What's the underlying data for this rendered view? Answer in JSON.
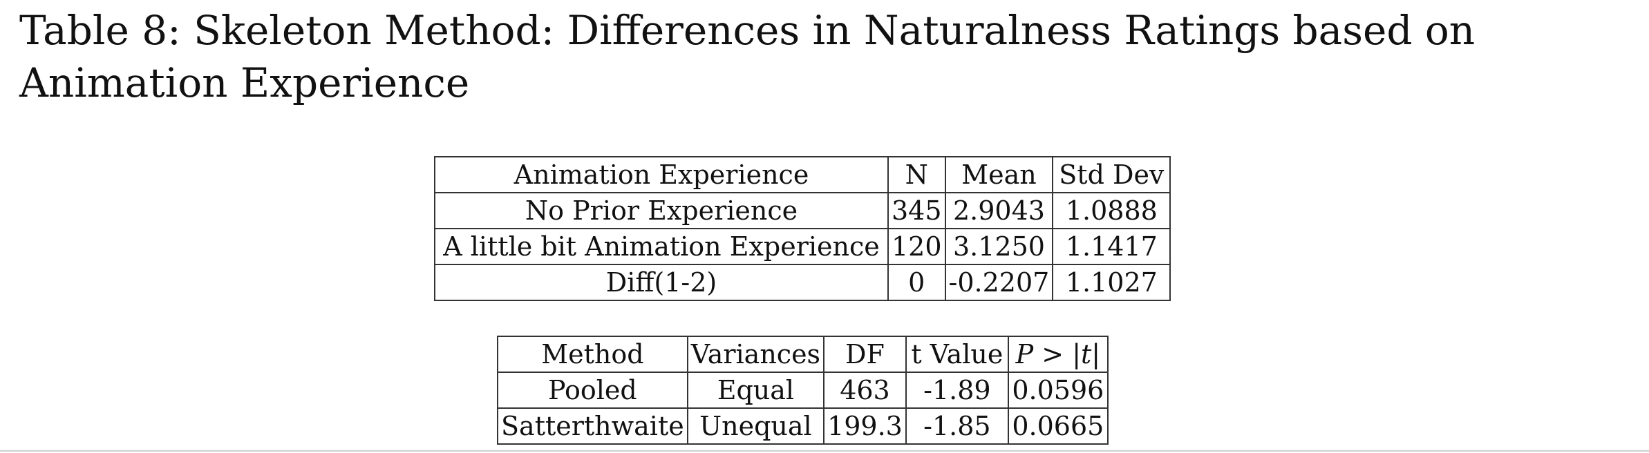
{
  "caption": "Table 8: Skeleton Method: Differences in Naturalness Ratings based on Animation Experience",
  "stats_table": {
    "headers": [
      "Animation Experience",
      "N",
      "Mean",
      "Std Dev"
    ],
    "rows": [
      [
        "No Prior Experience",
        "345",
        "2.9043",
        "1.0888"
      ],
      [
        "A little bit Animation Experience",
        "120",
        "3.1250",
        "1.1417"
      ],
      [
        "Diff(1-2)",
        "0",
        "-0.2207",
        "1.1027"
      ]
    ]
  },
  "ttest_table": {
    "headers": [
      "Method",
      "Variances",
      "DF",
      "t Value",
      "P > |t|"
    ],
    "rows": [
      [
        "Pooled",
        "Equal",
        "463",
        "-1.89",
        "0.0596"
      ],
      [
        "Satterthwaite",
        "Unequal",
        "199.3",
        "-1.85",
        "0.0665"
      ]
    ]
  }
}
